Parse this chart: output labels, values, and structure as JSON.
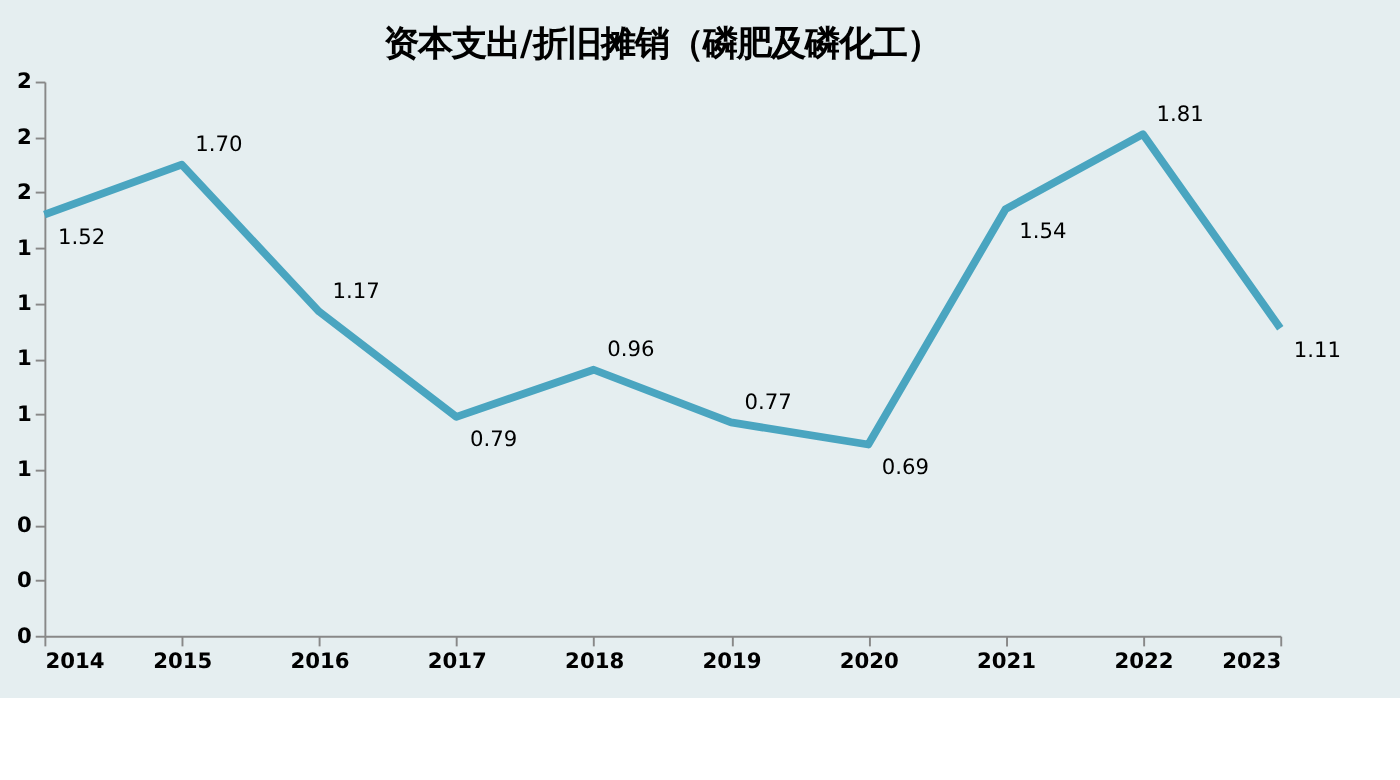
{
  "chart_data": {
    "type": "line",
    "title": "资本支出/折旧摊销（磷肥及磷化工）",
    "categories": [
      "2014",
      "2015",
      "2016",
      "2017",
      "2018",
      "2019",
      "2020",
      "2021",
      "2022",
      "2023"
    ],
    "series": [
      {
        "color": "#4aa5c0",
        "values": [
          1.52,
          1.7,
          1.17,
          0.79,
          0.96,
          0.77,
          0.69,
          1.54,
          1.81,
          1.11
        ],
        "value_labels": [
          "1.52",
          "1.70",
          "1.17",
          "0.79",
          "0.96",
          "0.77",
          "0.69",
          "1.54",
          "1.81",
          "1.11"
        ]
      }
    ],
    "ylim": [
      0,
      2
    ],
    "yticks": [
      0,
      {
        "value": 0.2,
        "label": "0"
      },
      {
        "value": 0.4,
        "label": "0"
      },
      {
        "value": 0.6,
        "label": "1"
      },
      {
        "value": 0.8,
        "label": "1"
      },
      1,
      {
        "value": 1.2,
        "label": "1"
      },
      {
        "value": 1.4,
        "label": "1"
      },
      {
        "value": 1.6,
        "label": "2"
      },
      {
        "value": 1.8,
        "label": "2"
      },
      2
    ],
    "grid": false,
    "marker": "none",
    "line_style": "solid"
  }
}
